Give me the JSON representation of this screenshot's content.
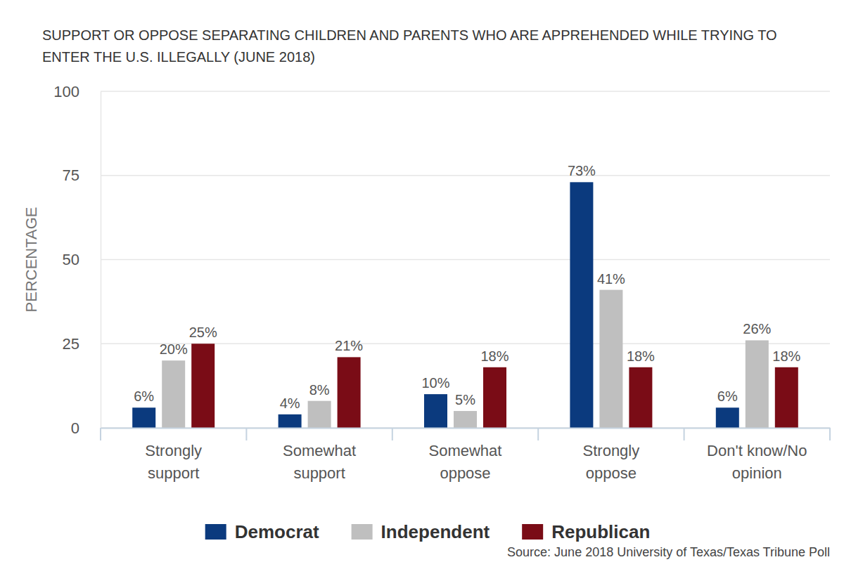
{
  "chart_data": {
    "type": "bar",
    "title": "SUPPORT OR OPPOSE SEPARATING CHILDREN AND PARENTS WHO ARE APPREHENDED WHILE TRYING TO ENTER THE U.S. ILLEGALLY (JUNE 2018)",
    "y_label": "PERCENTAGE",
    "source": "Source: June 2018 University of Texas/Texas Tribune Poll",
    "categories": [
      "Strongly support",
      "Somewhat support",
      "Somewhat oppose",
      "Strongly oppose",
      "Don't know/No opinion"
    ],
    "series": [
      {
        "name": "Democrat",
        "color": "#0b3a7e",
        "values": [
          6,
          4,
          10,
          73,
          6
        ],
        "value_labels": [
          "6%",
          "4%",
          "10%",
          "73%",
          "6%"
        ]
      },
      {
        "name": "Independent",
        "color": "#bfbfbf",
        "values": [
          20,
          8,
          5,
          41,
          26
        ],
        "value_labels": [
          "20%",
          "8%",
          "5%",
          "41%",
          "26%"
        ]
      },
      {
        "name": "Republican",
        "color": "#7a0c16",
        "values": [
          25,
          21,
          18,
          18,
          18
        ],
        "value_labels": [
          "25%",
          "21%",
          "18%",
          "18%",
          "18%"
        ]
      }
    ],
    "ylim": [
      0,
      100
    ],
    "yticks": [
      0,
      25,
      50,
      75,
      100
    ],
    "grid": true,
    "legend": "bottom",
    "data_labels": true
  }
}
